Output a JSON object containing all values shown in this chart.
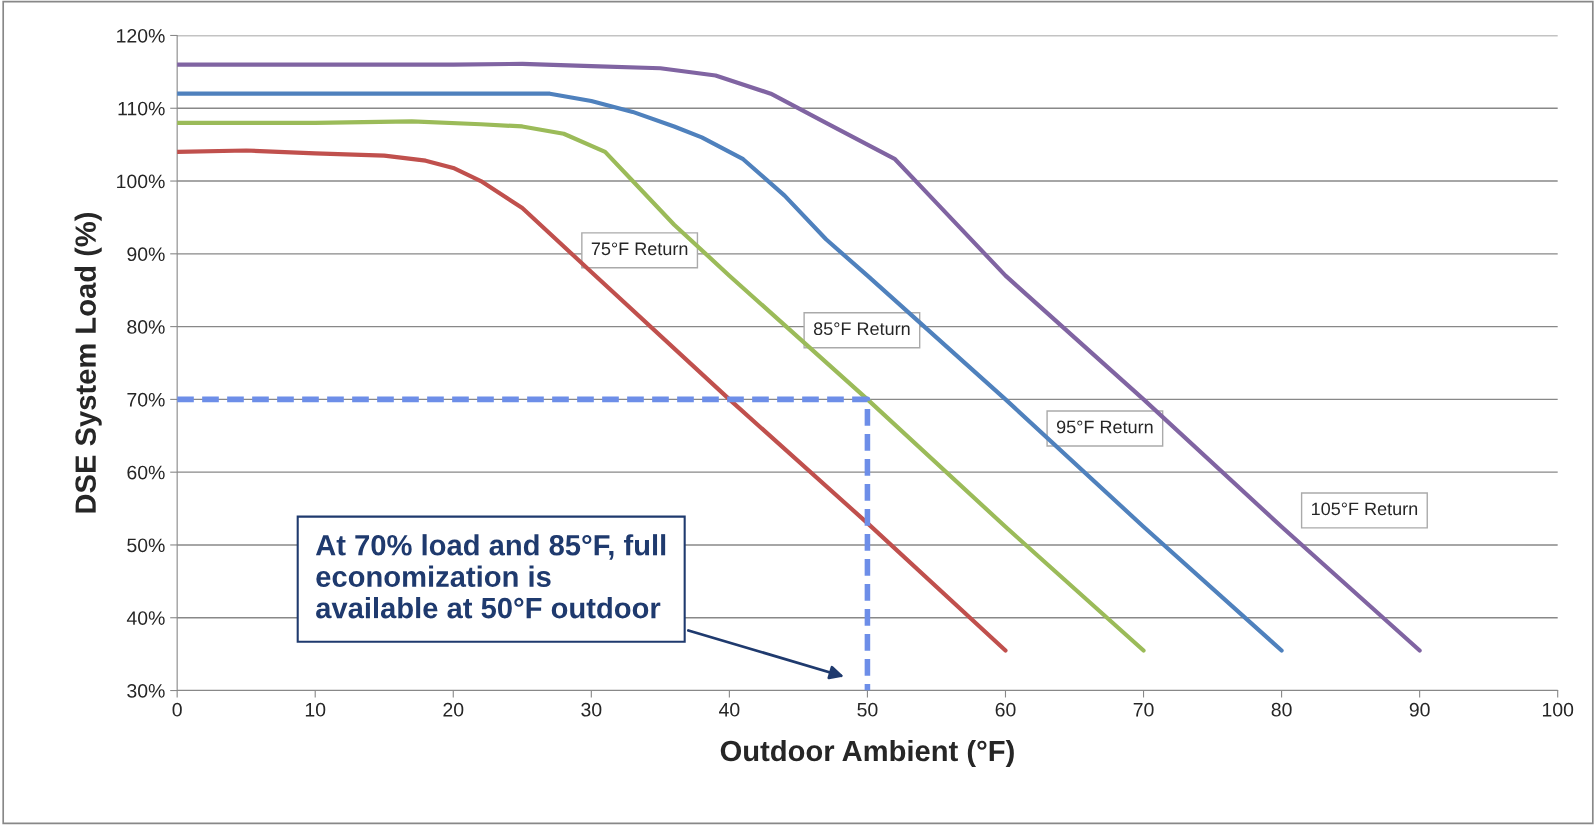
{
  "chart_data": {
    "type": "line",
    "xlabel": "Outdoor Ambient (°F)",
    "ylabel": "DSE System Load (%)",
    "xlim": [
      0,
      100
    ],
    "xticks": [
      0,
      10,
      20,
      30,
      40,
      50,
      60,
      70,
      80,
      90,
      100
    ],
    "ylim": [
      30,
      120
    ],
    "yticks": [
      {
        "value": 30,
        "label": "30%"
      },
      {
        "value": 40,
        "label": "40%"
      },
      {
        "value": 50,
        "label": "50%"
      },
      {
        "value": 60,
        "label": "60%"
      },
      {
        "value": 70,
        "label": "70%"
      },
      {
        "value": 80,
        "label": "80%"
      },
      {
        "value": 90,
        "label": "90%"
      },
      {
        "value": 100,
        "label": "100%"
      },
      {
        "value": 110,
        "label": "110%"
      },
      {
        "value": 120,
        "label": "120%"
      }
    ],
    "grid": "y",
    "marker": "none",
    "series": [
      {
        "color": "#c0504d",
        "x": [
          0,
          5,
          10,
          15,
          18,
          20,
          22,
          25,
          30,
          40,
          50,
          60
        ],
        "values": [
          104,
          104.2,
          103.8,
          103.5,
          102.8,
          101.8,
          100,
          96.3,
          87.5,
          70,
          53,
          35.5
        ]
      },
      {
        "color": "#9bbb59",
        "x": [
          0,
          10,
          17,
          22,
          25,
          28,
          31,
          33,
          36,
          40,
          50,
          60,
          70
        ],
        "values": [
          108,
          108,
          108.2,
          107.8,
          107.5,
          106.5,
          104,
          100,
          94,
          87,
          70,
          52.5,
          35.5
        ]
      },
      {
        "color": "#4f81bd",
        "x": [
          0,
          10,
          20,
          27,
          30,
          33,
          36,
          38,
          41,
          44,
          47,
          50,
          60,
          70,
          80
        ],
        "values": [
          112,
          112,
          112,
          112,
          111,
          109.5,
          107.5,
          106,
          103,
          98,
          92,
          87,
          70,
          52.5,
          35.5
        ]
      },
      {
        "color": "#8064a2",
        "x": [
          0,
          10,
          20,
          25,
          30,
          35,
          39,
          43,
          47,
          50,
          52,
          55,
          60,
          70,
          80,
          90
        ],
        "values": [
          116,
          116,
          116,
          116.1,
          115.8,
          115.5,
          114.5,
          112,
          108,
          105,
          103,
          97,
          87,
          70,
          52.5,
          35.5
        ]
      },
      {
        "color": "#6d8ee8",
        "line_style": "dashed",
        "x": [
          0,
          50,
          50
        ],
        "values": [
          70,
          70,
          30
        ]
      }
    ],
    "annotations": [
      "75°F Return",
      "85°F Return",
      "95°F Return",
      "105°F Return",
      "At 70% load and 85°F, full\neconomization is\navailable at 50°F outdoor"
    ]
  }
}
